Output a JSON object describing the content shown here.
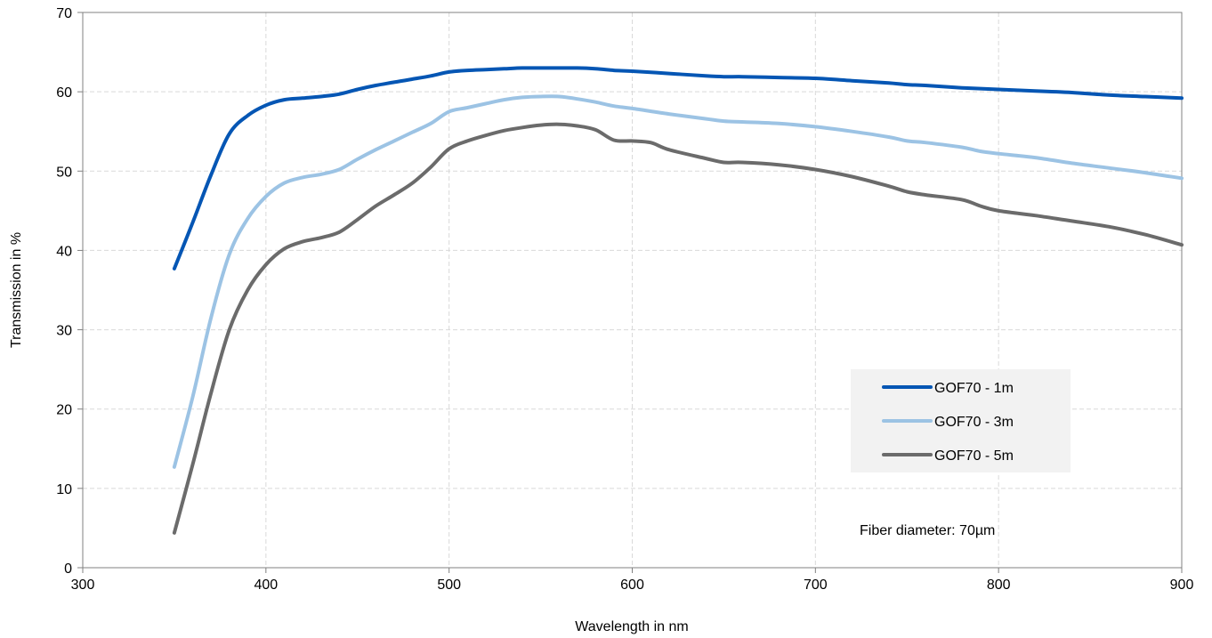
{
  "chart_data": {
    "type": "line",
    "title": "",
    "xlabel": "Wavelength in nm",
    "ylabel": "Transmission in %",
    "xlim": [
      300,
      900
    ],
    "ylim": [
      0,
      70
    ],
    "xticks": [
      300,
      400,
      500,
      600,
      700,
      800,
      900
    ],
    "yticks": [
      0,
      10,
      20,
      30,
      40,
      50,
      60,
      70
    ],
    "grid": true,
    "legend_position": "right",
    "annotation": "Fiber diameter: 70µm",
    "series": [
      {
        "name": "GOF70 - 1m",
        "color": "#0556b4",
        "x": [
          350,
          360,
          370,
          380,
          390,
          400,
          410,
          420,
          430,
          440,
          450,
          460,
          470,
          480,
          490,
          500,
          510,
          520,
          530,
          540,
          550,
          560,
          570,
          580,
          590,
          600,
          620,
          640,
          650,
          660,
          680,
          700,
          720,
          740,
          750,
          760,
          780,
          800,
          820,
          840,
          860,
          880,
          900
        ],
        "y": [
          37.7,
          43.5,
          49.5,
          54.7,
          57.0,
          58.3,
          59.0,
          59.2,
          59.4,
          59.7,
          60.3,
          60.8,
          61.2,
          61.6,
          62.0,
          62.5,
          62.7,
          62.8,
          62.9,
          63.0,
          63.0,
          63.0,
          63.0,
          62.9,
          62.7,
          62.6,
          62.3,
          62.0,
          61.9,
          61.9,
          61.8,
          61.7,
          61.4,
          61.1,
          60.9,
          60.8,
          60.5,
          60.3,
          60.1,
          59.9,
          59.6,
          59.4,
          59.2
        ]
      },
      {
        "name": "GOF70 - 3m",
        "color": "#9cc3e4",
        "x": [
          350,
          360,
          370,
          380,
          390,
          400,
          410,
          420,
          430,
          440,
          450,
          460,
          470,
          480,
          490,
          500,
          510,
          520,
          530,
          540,
          550,
          560,
          570,
          580,
          590,
          600,
          620,
          640,
          650,
          660,
          680,
          700,
          720,
          740,
          750,
          760,
          780,
          790,
          800,
          820,
          840,
          860,
          880,
          900
        ],
        "y": [
          12.7,
          21.5,
          31.5,
          39.5,
          44.0,
          46.8,
          48.5,
          49.2,
          49.6,
          50.2,
          51.5,
          52.7,
          53.8,
          54.9,
          56.0,
          57.5,
          58.0,
          58.5,
          59.0,
          59.3,
          59.4,
          59.4,
          59.1,
          58.7,
          58.2,
          57.9,
          57.2,
          56.6,
          56.3,
          56.2,
          56.0,
          55.6,
          55.0,
          54.3,
          53.8,
          53.6,
          53.0,
          52.5,
          52.2,
          51.7,
          51.0,
          50.4,
          49.8,
          49.1
        ]
      },
      {
        "name": "GOF70 - 5m",
        "color": "#6b6b6b",
        "x": [
          350,
          360,
          370,
          380,
          390,
          400,
          410,
          420,
          430,
          440,
          450,
          460,
          470,
          480,
          490,
          500,
          510,
          520,
          530,
          540,
          550,
          560,
          570,
          580,
          590,
          600,
          610,
          620,
          640,
          650,
          660,
          680,
          700,
          720,
          740,
          750,
          760,
          780,
          790,
          800,
          820,
          840,
          860,
          880,
          900
        ],
        "y": [
          4.4,
          13.0,
          22.0,
          30.0,
          35.0,
          38.2,
          40.2,
          41.1,
          41.6,
          42.3,
          43.9,
          45.6,
          47.0,
          48.5,
          50.5,
          52.8,
          53.8,
          54.5,
          55.1,
          55.5,
          55.8,
          55.9,
          55.7,
          55.2,
          53.9,
          53.8,
          53.6,
          52.7,
          51.6,
          51.1,
          51.1,
          50.8,
          50.2,
          49.3,
          48.1,
          47.4,
          47.0,
          46.4,
          45.6,
          45.0,
          44.4,
          43.7,
          43.0,
          42.0,
          40.7
        ]
      }
    ]
  }
}
